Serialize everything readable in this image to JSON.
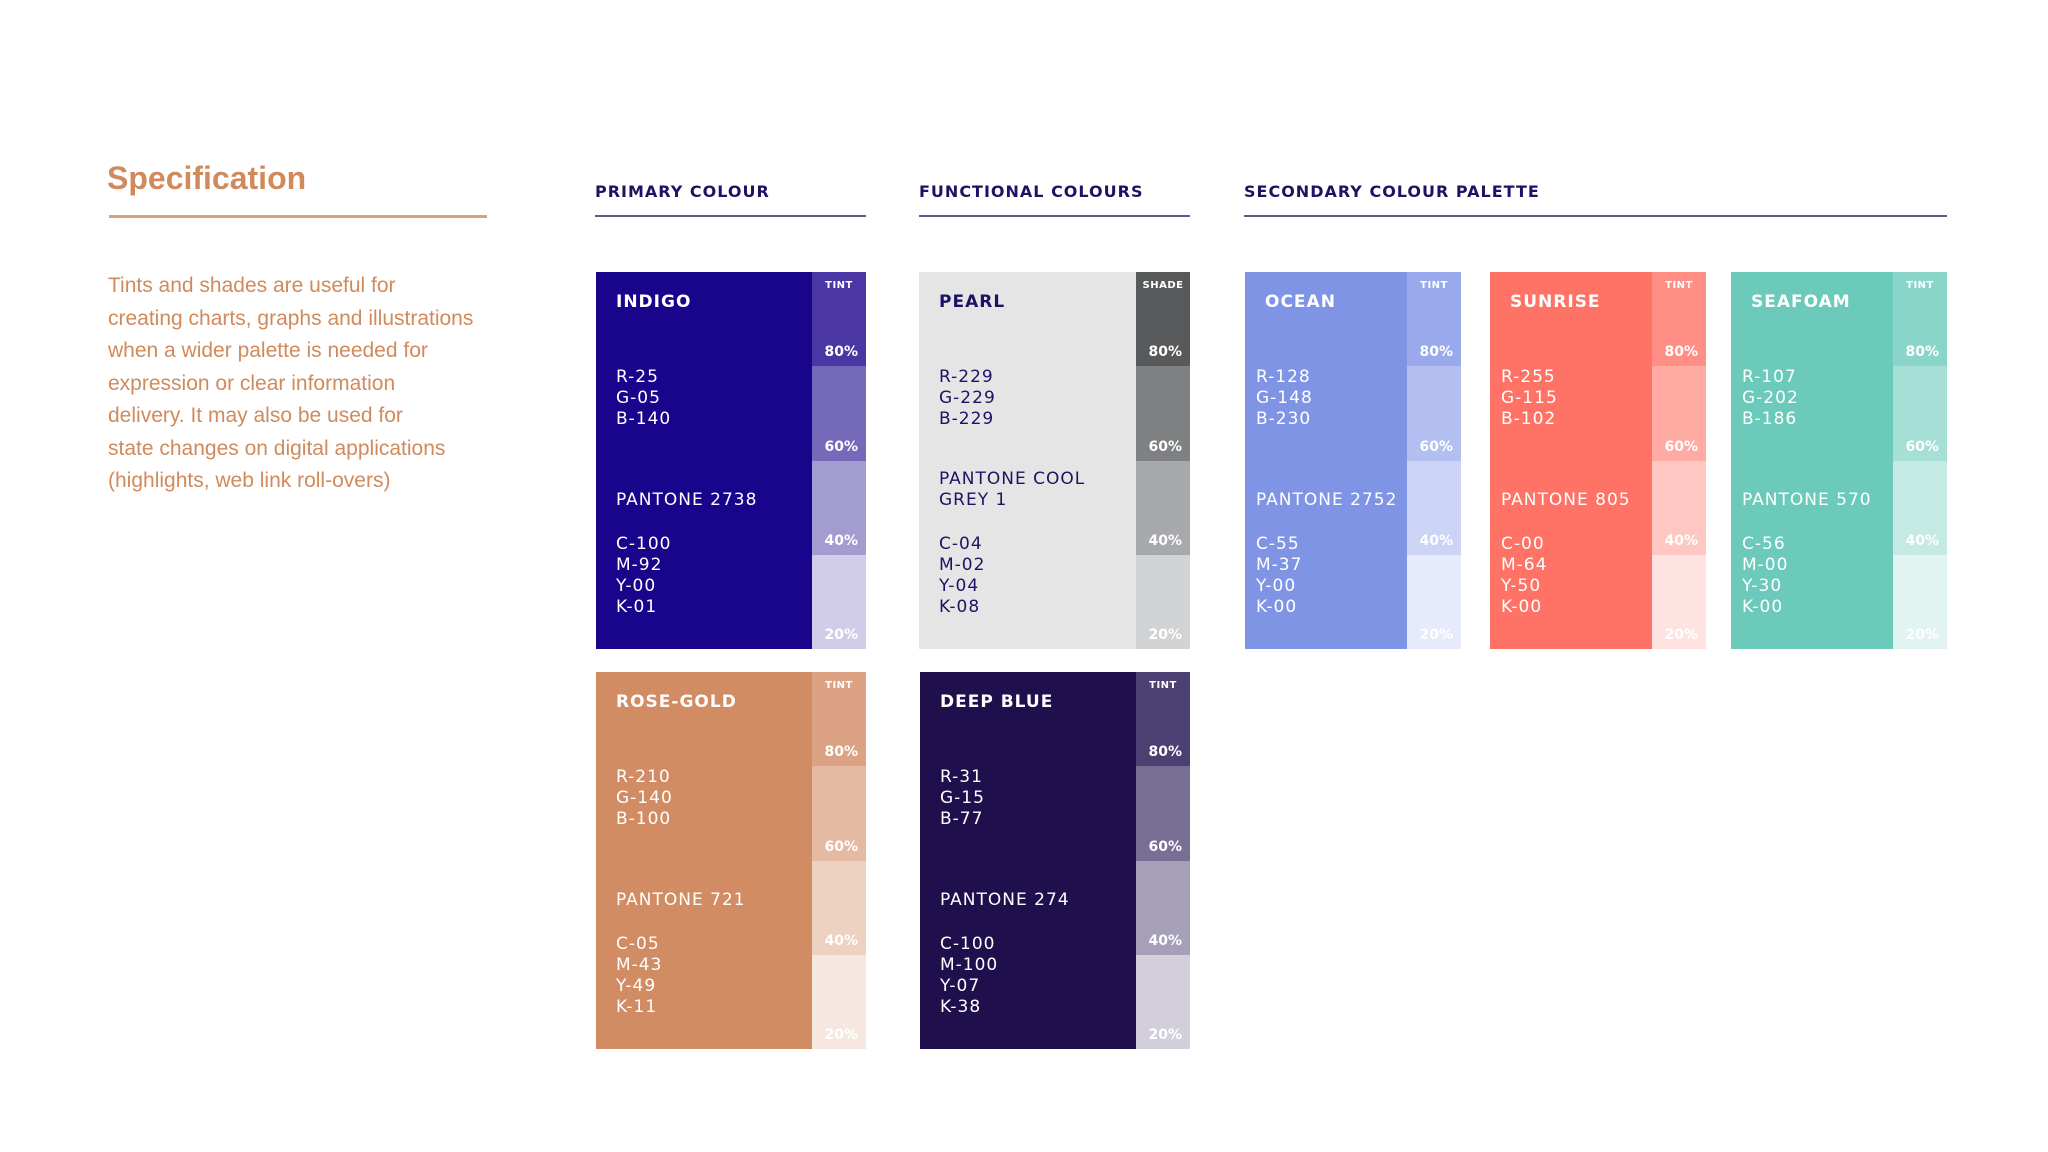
{
  "header": {
    "title": "Specification",
    "description": [
      "Tints and shades are useful for",
      "creating charts, graphs and illustrations",
      "when a wider palette is needed for",
      "expression or clear information",
      "delivery. It may also be used for",
      "state changes on digital applications",
      "(highlights, web link roll-overs)"
    ]
  },
  "sections": [
    {
      "title": "PRIMARY COLOUR"
    },
    {
      "title": "FUNCTIONAL COLOURS"
    },
    {
      "title": "SECONDARY COLOUR PALETTE"
    }
  ],
  "swatches": [
    {
      "name": "INDIGO",
      "color": "#19058c",
      "text_color": "#ffffff",
      "rgb": [
        "R-25",
        "G-05",
        "B-140"
      ],
      "pantone": "PANTONE 2738",
      "cmyk": [
        "C-100",
        "M-92",
        "Y-00",
        "K-01"
      ],
      "strip_label": "TINT",
      "strip": [
        {
          "label": "80%",
          "color": "#4a37a3"
        },
        {
          "label": "60%",
          "color": "#7569ba"
        },
        {
          "label": "40%",
          "color": "#a39cd1"
        },
        {
          "label": "20%",
          "color": "#d1cde8"
        }
      ]
    },
    {
      "name": "PEARL",
      "color": "#e5e5e5",
      "text_color": "#1b1464",
      "rgb": [
        "R-229",
        "G-229",
        "B-229"
      ],
      "pantone": "PANTONE COOL GREY 1",
      "cmyk": [
        "C-04",
        "M-02",
        "Y-04",
        "K-08"
      ],
      "strip_label": "SHADE",
      "strip": [
        {
          "label": "80%",
          "color": "#58595b"
        },
        {
          "label": "60%",
          "color": "#7e8082"
        },
        {
          "label": "40%",
          "color": "#a7a9ac"
        },
        {
          "label": "20%",
          "color": "#d1d3d4"
        }
      ]
    },
    {
      "name": "OCEAN",
      "color": "#8094e6",
      "text_color": "#ffffff",
      "rgb": [
        "R-128",
        "G-148",
        "B-230"
      ],
      "pantone": "PANTONE 2752",
      "cmyk": [
        "C-55",
        "M-37",
        "Y-00",
        "K-00"
      ],
      "strip_label": "TINT",
      "strip": [
        {
          "label": "80%",
          "color": "#99a9eb"
        },
        {
          "label": "60%",
          "color": "#b3bff0"
        },
        {
          "label": "40%",
          "color": "#ccd4f5"
        },
        {
          "label": "20%",
          "color": "#e6eafa"
        }
      ]
    },
    {
      "name": "SUNRISE",
      "color": "#ff7366",
      "text_color": "#ffffff",
      "rgb": [
        "R-255",
        "G-115",
        "B-102"
      ],
      "pantone": "PANTONE 805",
      "cmyk": [
        "C-00",
        "M-64",
        "Y-50",
        "K-00"
      ],
      "strip_label": "TINT",
      "strip": [
        {
          "label": "80%",
          "color": "#ff8f85"
        },
        {
          "label": "60%",
          "color": "#ffaba3"
        },
        {
          "label": "40%",
          "color": "#ffc7c2"
        },
        {
          "label": "20%",
          "color": "#ffe3e0"
        }
      ]
    },
    {
      "name": "SEAFOAM",
      "color": "#6bcaba",
      "text_color": "#ffffff",
      "rgb": [
        "R-107",
        "G-202",
        "B-186"
      ],
      "pantone": "PANTONE 570",
      "cmyk": [
        "C-56",
        "M-00",
        "Y-30",
        "K-00"
      ],
      "strip_label": "TINT",
      "strip": [
        {
          "label": "80%",
          "color": "#89d5c8"
        },
        {
          "label": "60%",
          "color": "#a6dfd6"
        },
        {
          "label": "40%",
          "color": "#c4eae3"
        },
        {
          "label": "20%",
          "color": "#e1f4f1"
        }
      ]
    },
    {
      "name": "ROSE-GOLD",
      "color": "#d28c64",
      "text_color": "#ffffff",
      "rgb": [
        "R-210",
        "G-140",
        "B-100"
      ],
      "pantone": "PANTONE 721",
      "cmyk": [
        "C-05",
        "M-43",
        "Y-49",
        "K-11"
      ],
      "strip_label": "TINT",
      "strip": [
        {
          "label": "80%",
          "color": "#dba383"
        },
        {
          "label": "60%",
          "color": "#e4baa2"
        },
        {
          "label": "40%",
          "color": "#edd1c1"
        },
        {
          "label": "20%",
          "color": "#f6e8e0"
        }
      ]
    },
    {
      "name": "DEEP BLUE",
      "color": "#1f0f4d",
      "text_color": "#ffffff",
      "rgb": [
        "R-31",
        "G-15",
        "B-77"
      ],
      "pantone": "PANTONE 274",
      "cmyk": [
        "C-100",
        "M-100",
        "Y-07",
        "K-38"
      ],
      "strip_label": "TINT",
      "strip": [
        {
          "label": "80%",
          "color": "#4c3f71"
        },
        {
          "label": "60%",
          "color": "#796f94"
        },
        {
          "label": "40%",
          "color": "#a59fb8"
        },
        {
          "label": "20%",
          "color": "#d2cfdb"
        }
      ]
    }
  ]
}
